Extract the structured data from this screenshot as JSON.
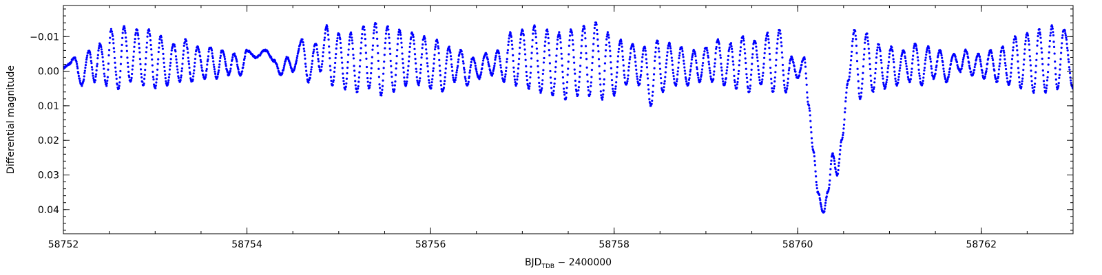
{
  "chart_data": {
    "type": "scatter",
    "title": "",
    "xlabel": {
      "main": "BJD",
      "subscript": "TDB",
      "suffix": " − 2400000"
    },
    "ylabel": "Differential magnitude",
    "xlim": [
      58752,
      58763
    ],
    "ylim": [
      -0.019,
      0.047
    ],
    "y_inverted": true,
    "x_ticks": [
      58752,
      58754,
      58756,
      58758,
      58760,
      58762
    ],
    "x_tick_labels": [
      "58752",
      "58754",
      "58756",
      "58758",
      "58760",
      "58762"
    ],
    "y_ticks": [
      -0.01,
      0.0,
      0.01,
      0.02,
      0.03,
      0.04
    ],
    "y_tick_labels": [
      "−0.01",
      "0.00",
      "0.01",
      "0.02",
      "0.03",
      "0.04"
    ],
    "x_minor_step": 0.5,
    "y_minor_step": 0.002,
    "grid": false,
    "marker_color": "#0000ff",
    "series": [
      {
        "x": [
          58752.0,
          58752.06,
          58752.12,
          58752.2,
          58752.28,
          58752.34,
          58752.4,
          58752.47,
          58752.52,
          58752.6,
          58752.66,
          58752.73,
          58752.8,
          58752.87,
          58752.93,
          58753.0,
          58753.06,
          58753.13,
          58753.2,
          58753.27,
          58753.33,
          58753.4,
          58753.46,
          58753.54,
          58753.6,
          58753.67,
          58753.73,
          58753.8,
          58753.86,
          58753.93,
          58754.0,
          58754.1,
          58754.2,
          58754.3,
          58754.37,
          58754.44,
          58754.5,
          58754.6,
          58754.67,
          58754.75,
          58754.8,
          58754.87,
          58754.93,
          58755.0,
          58755.07,
          58755.13,
          58755.2,
          58755.27,
          58755.33,
          58755.4,
          58755.46,
          58755.53,
          58755.6,
          58755.66,
          58755.73,
          58755.8,
          58755.87,
          58755.93,
          58756.0,
          58756.07,
          58756.13,
          58756.2,
          58756.26,
          58756.33,
          58756.4,
          58756.46,
          58756.53,
          58756.6,
          58756.67,
          58756.73,
          58756.8,
          58756.87,
          58756.93,
          58757.0,
          58757.07,
          58757.13,
          58757.2,
          58757.27,
          58757.33,
          58757.4,
          58757.47,
          58757.53,
          58757.6,
          58757.67,
          58757.73,
          58757.8,
          58757.87,
          58757.93,
          58758.0,
          58758.07,
          58758.13,
          58758.2,
          58758.27,
          58758.33,
          58758.4,
          58758.47,
          58758.53,
          58758.6,
          58758.67,
          58758.73,
          58758.8,
          58758.87,
          58758.93,
          58759.0,
          58759.07,
          58759.13,
          58759.2,
          58759.27,
          58759.33,
          58759.4,
          58759.47,
          58759.53,
          58759.6,
          58759.67,
          58759.73,
          58759.8,
          58759.87,
          58759.93,
          58760.0,
          58760.07,
          58760.12,
          58760.17,
          58760.22,
          58760.28,
          58760.33,
          58760.38,
          58760.43,
          58760.48,
          58760.55,
          58760.62,
          58760.68,
          58760.75,
          58760.82,
          58760.88,
          58760.95,
          58761.02,
          58761.08,
          58761.15,
          58761.22,
          58761.28,
          58761.35,
          58761.42,
          58761.48,
          58761.55,
          58761.62,
          58761.7,
          58761.77,
          58761.83,
          58761.9,
          58761.97,
          58762.03,
          58762.1,
          58762.17,
          58762.23,
          58762.3,
          58762.37,
          58762.43,
          58762.5,
          58762.57,
          58762.63,
          58762.7,
          58762.77,
          58762.83,
          58762.9,
          58763.0
        ],
        "y": [
          -0.001,
          -0.002,
          -0.004,
          0.004,
          -0.006,
          0.003,
          -0.008,
          0.004,
          -0.012,
          0.005,
          -0.013,
          0.003,
          -0.012,
          0.004,
          -0.012,
          0.005,
          -0.01,
          0.004,
          -0.008,
          0.003,
          -0.009,
          0.003,
          -0.007,
          0.002,
          -0.007,
          0.002,
          -0.006,
          0.001,
          -0.005,
          0.001,
          -0.006,
          -0.004,
          -0.006,
          -0.003,
          0.001,
          -0.004,
          0.0,
          -0.009,
          0.003,
          -0.008,
          0.0,
          -0.013,
          0.004,
          -0.011,
          0.005,
          -0.011,
          0.006,
          -0.013,
          0.005,
          -0.014,
          0.007,
          -0.013,
          0.006,
          -0.012,
          0.004,
          -0.011,
          0.004,
          -0.01,
          0.005,
          -0.009,
          0.006,
          -0.007,
          0.003,
          -0.006,
          0.004,
          -0.004,
          0.002,
          -0.005,
          0.001,
          -0.006,
          0.003,
          -0.011,
          0.004,
          -0.012,
          0.005,
          -0.013,
          0.006,
          -0.012,
          0.007,
          -0.011,
          0.008,
          -0.012,
          0.007,
          -0.013,
          0.007,
          -0.014,
          0.008,
          -0.011,
          0.007,
          -0.009,
          0.004,
          -0.008,
          0.004,
          -0.007,
          0.01,
          -0.009,
          0.006,
          -0.008,
          0.004,
          -0.007,
          0.004,
          -0.006,
          0.003,
          -0.007,
          0.003,
          -0.009,
          0.004,
          -0.008,
          0.005,
          -0.01,
          0.006,
          -0.009,
          0.004,
          -0.011,
          0.006,
          -0.012,
          0.006,
          -0.004,
          0.002,
          -0.004,
          0.01,
          0.023,
          0.035,
          0.041,
          0.035,
          0.024,
          0.03,
          0.02,
          0.003,
          -0.012,
          0.008,
          -0.011,
          0.006,
          -0.008,
          0.005,
          -0.007,
          0.004,
          -0.006,
          0.003,
          -0.008,
          0.004,
          -0.007,
          0.002,
          -0.006,
          0.003,
          -0.005,
          0.0,
          -0.006,
          0.001,
          -0.005,
          0.002,
          -0.006,
          0.003,
          -0.007,
          0.004,
          -0.01,
          0.005,
          -0.011,
          0.006,
          -0.012,
          0.006,
          -0.013,
          0.005,
          -0.012,
          0.005
        ]
      }
    ]
  }
}
